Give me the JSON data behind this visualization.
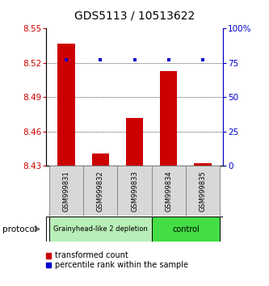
{
  "title": "GDS5113 / 10513622",
  "samples": [
    "GSM999831",
    "GSM999832",
    "GSM999833",
    "GSM999834",
    "GSM999835"
  ],
  "red_values": [
    8.537,
    8.441,
    8.472,
    8.513,
    8.432
  ],
  "blue_pct": [
    77.0,
    77.0,
    77.0,
    77.0,
    77.0
  ],
  "ymin": 8.43,
  "ymax": 8.55,
  "yticks": [
    8.43,
    8.46,
    8.49,
    8.52,
    8.55
  ],
  "y2min": 0,
  "y2max": 100,
  "y2ticks": [
    0,
    25,
    50,
    75,
    100
  ],
  "y2ticklabels": [
    "0",
    "25",
    "50",
    "75",
    "100%"
  ],
  "group1_label": "Grainyhead-like 2 depletion",
  "group2_label": "control",
  "group1_color": "#b8eeb8",
  "group2_color": "#44dd44",
  "protocol_label": "protocol",
  "bar_width": 0.5,
  "red_color": "#cc0000",
  "blue_color": "#0000cc",
  "legend_red": "transformed count",
  "legend_blue": "percentile rank within the sample",
  "title_fontsize": 10,
  "tick_fontsize": 7.5,
  "sample_fontsize": 6,
  "legend_fontsize": 7
}
